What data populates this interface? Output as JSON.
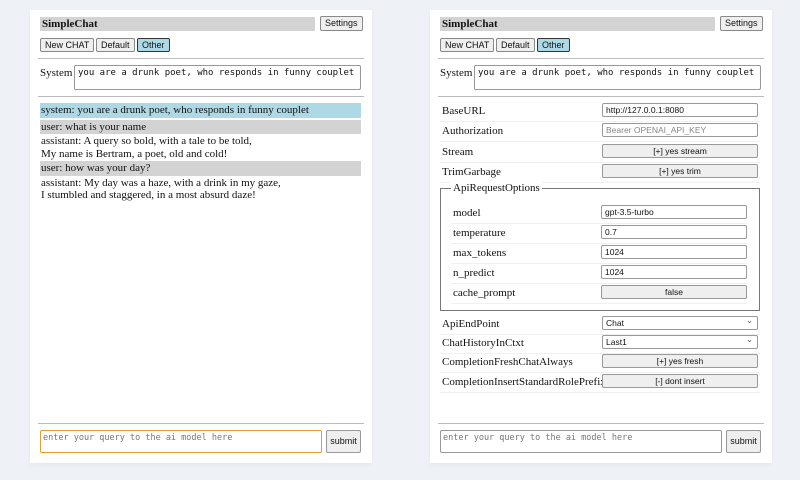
{
  "app": {
    "title": "SimpleChat",
    "settings_label": "Settings",
    "buttons": {
      "new_chat": "New CHAT",
      "default": "Default",
      "other": "Other"
    },
    "system_label": "System",
    "system_prompt": "you are a drunk poet, who responds in funny couplet",
    "query_placeholder": "enter your query to the ai model here",
    "submit_label": "submit"
  },
  "chat": {
    "messages": [
      {
        "role": "system",
        "text": "system: you are a drunk poet, who responds in funny couplet"
      },
      {
        "role": "user",
        "text": "user: what is your name"
      },
      {
        "role": "assistant",
        "text": "assistant: A query so bold, with a tale to be told,\nMy name is Bertram, a poet, old and cold!"
      },
      {
        "role": "user",
        "text": "user: how was your day?"
      },
      {
        "role": "assistant",
        "text": "assistant: My day was a haze, with a drink in my gaze,\nI stumbled and staggered, in a most absurd daze!"
      }
    ]
  },
  "settings": {
    "base_url": {
      "label": "BaseURL",
      "value": "http://127.0.0.1:8080"
    },
    "authorization": {
      "label": "Authorization",
      "placeholder": "Bearer OPENAI_API_KEY"
    },
    "stream": {
      "label": "Stream",
      "value": "[+] yes stream"
    },
    "trim_garbage": {
      "label": "TrimGarbage",
      "value": "[+] yes trim"
    },
    "api_request_options": {
      "legend": "ApiRequestOptions",
      "model": {
        "label": "model",
        "value": "gpt-3.5-turbo"
      },
      "temperature": {
        "label": "temperature",
        "value": "0.7"
      },
      "max_tokens": {
        "label": "max_tokens",
        "value": "1024"
      },
      "n_predict": {
        "label": "n_predict",
        "value": "1024"
      },
      "cache_prompt": {
        "label": "cache_prompt",
        "value": "false"
      }
    },
    "api_endpoint": {
      "label": "ApiEndPoint",
      "value": "Chat"
    },
    "chat_history": {
      "label": "ChatHistoryInCtxt",
      "value": "Last1"
    },
    "fresh_chat": {
      "label": "CompletionFreshChatAlways",
      "value": "[+] yes fresh"
    },
    "insert_prefix": {
      "label": "CompletionInsertStandardRolePrefix",
      "value": "[-] dont insert"
    }
  },
  "colors": {
    "system_bg": "#add8e6",
    "user_bg": "#d3d3d3",
    "selected_button": "#add8e6",
    "focus_border": "#e0a030"
  }
}
